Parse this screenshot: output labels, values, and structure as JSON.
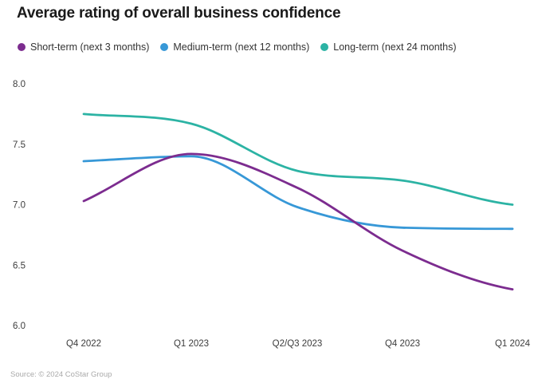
{
  "source": "Source: © 2024 CoStar Group",
  "chart_data": {
    "type": "line",
    "title": "Average rating of overall business confidence",
    "categories": [
      "Q4 2022",
      "Q1 2023",
      "Q2/Q3 2023",
      "Q4 2023",
      "Q1 2024"
    ],
    "series": [
      {
        "name": "Short-term (next 3 months)",
        "color": "#7C2C8F",
        "values": [
          7.03,
          7.42,
          7.14,
          6.62,
          6.3
        ]
      },
      {
        "name": "Medium-term (next 12 months)",
        "color": "#3798D7",
        "values": [
          7.36,
          7.4,
          6.98,
          6.81,
          6.8
        ]
      },
      {
        "name": "Long-term (next 24 months)",
        "color": "#2CB3A4",
        "values": [
          7.75,
          7.67,
          7.28,
          7.2,
          7.0
        ]
      }
    ],
    "xlabel": "",
    "ylabel": "",
    "yticks": [
      "8.0",
      "7.5",
      "7.0",
      "6.5",
      "6.0"
    ],
    "ytick_values": [
      8.0,
      7.5,
      7.0,
      6.5,
      6.0
    ],
    "ylim": [
      6.0,
      8.0
    ],
    "grid": false,
    "legend_position": "top"
  }
}
